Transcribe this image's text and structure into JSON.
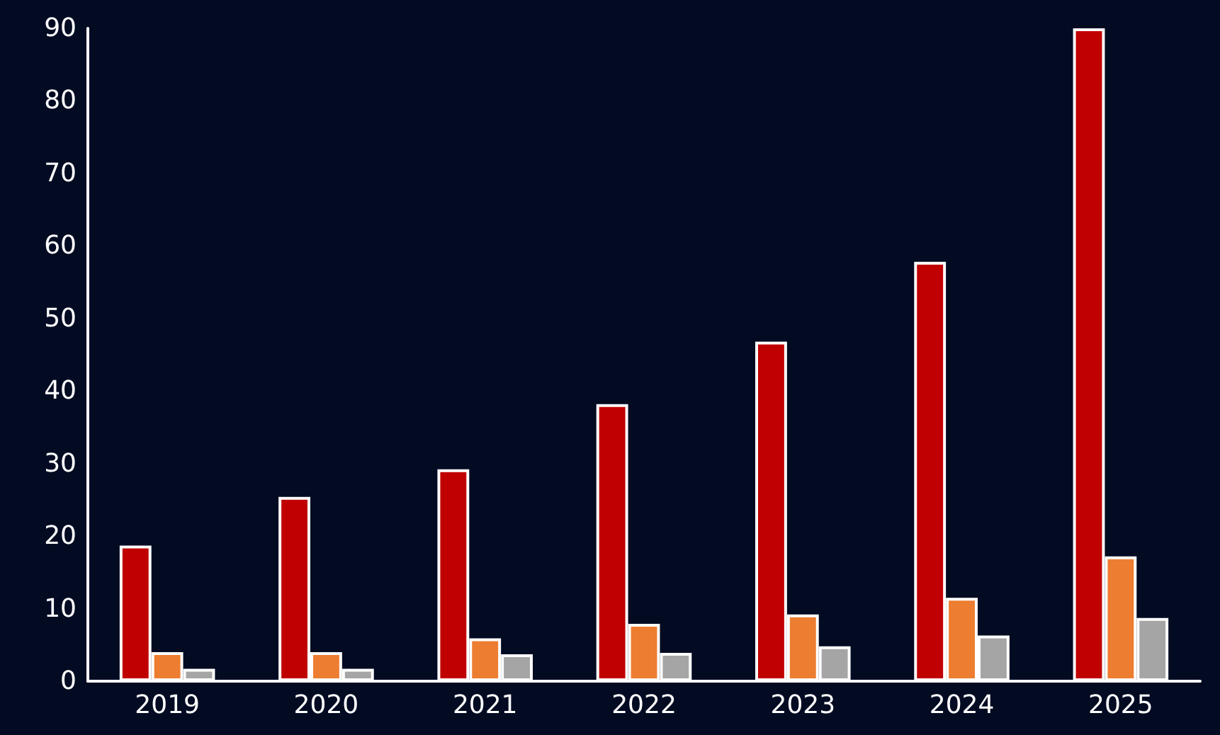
{
  "chart_data": {
    "type": "bar",
    "categories": [
      "2019",
      "2020",
      "2021",
      "2022",
      "2023",
      "2024",
      "2025"
    ],
    "series": [
      {
        "color": "#c00000",
        "values": [
          18.7,
          25.4,
          29.2,
          38.2,
          46.8,
          57.8,
          90
        ]
      },
      {
        "color": "#ed7d31",
        "values": [
          4,
          4,
          5.9,
          7.9,
          9.2,
          11.5,
          17.2
        ]
      },
      {
        "color": "#a5a5a5",
        "values": [
          1.7,
          1.7,
          3.7,
          3.9,
          4.8,
          6.3,
          8.7
        ]
      }
    ],
    "ylim": [
      0,
      90
    ],
    "yticks": [
      0,
      10,
      20,
      30,
      40,
      50,
      60,
      70,
      80,
      90
    ]
  }
}
